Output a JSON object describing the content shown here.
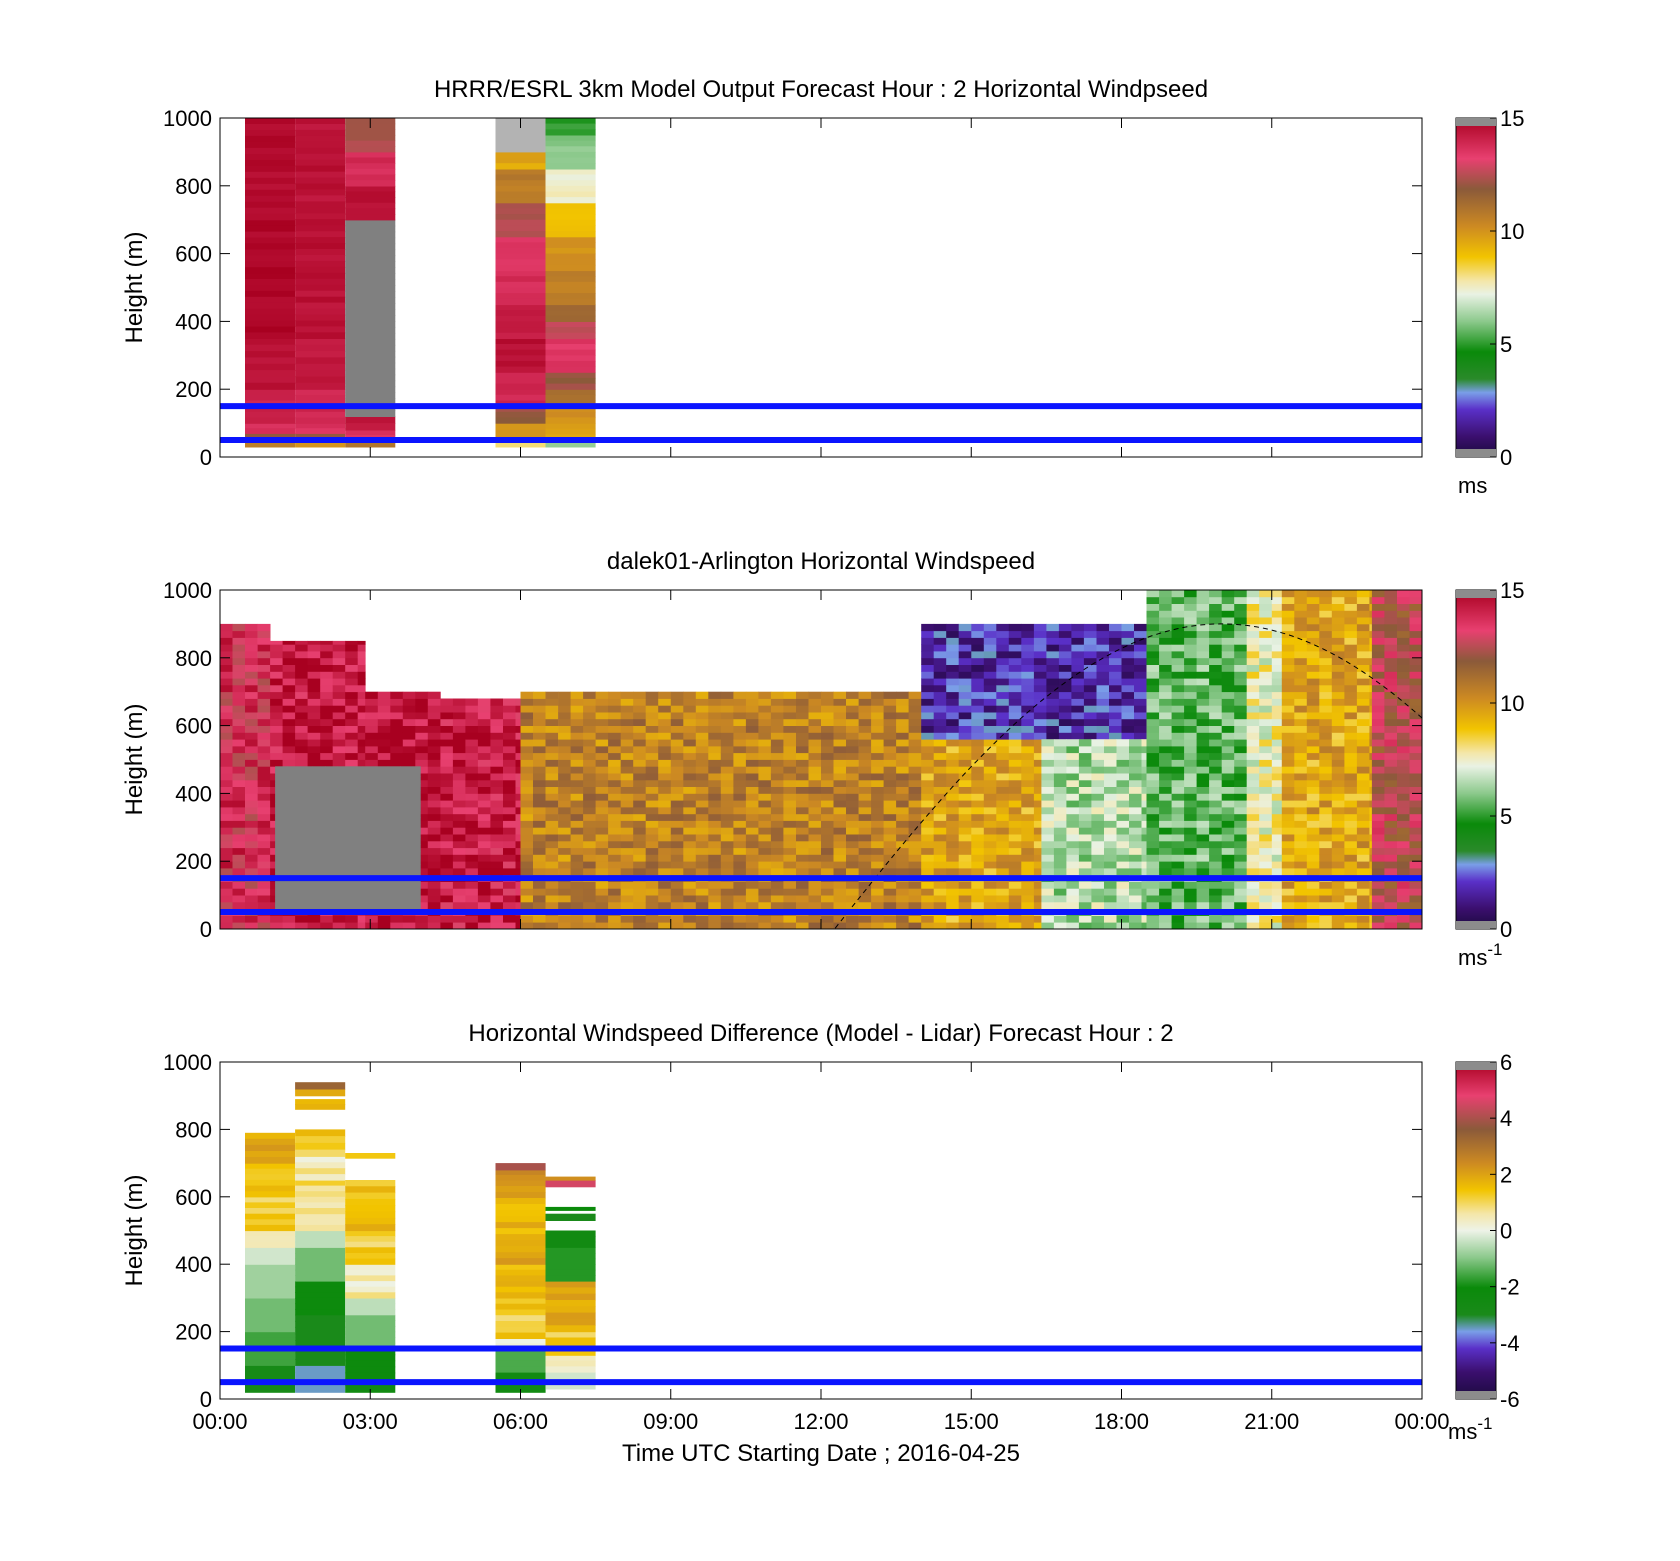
{
  "chart_data": [
    {
      "type": "heatmap",
      "title": "HRRR/ESRL 3km Model Output   Forecast Hour : 2 Horizontal Windpseed",
      "xlabel": "",
      "ylabel": "Height (m)",
      "xlim_hours": [
        0,
        24
      ],
      "ylim": [
        0,
        1000
      ],
      "yticks": [
        "0",
        "200",
        "400",
        "600",
        "800",
        "1000"
      ],
      "colorbar": {
        "min": 0,
        "max": 15,
        "ticks": [
          "0",
          "5",
          "10",
          "15"
        ],
        "unit": "ms",
        "unit_sup": ""
      },
      "reference_lines_m": [
        50,
        150
      ],
      "columns": [
        {
          "hour": 1,
          "cells": [
            [
              30,
              50,
              10.5
            ],
            [
              50,
              70,
              12
            ],
            [
              70,
              100,
              13.5
            ],
            [
              100,
              200,
              14
            ],
            [
              200,
              350,
              14.5
            ],
            [
              350,
              700,
              14.8
            ],
            [
              700,
              1000,
              14.7
            ]
          ]
        },
        {
          "hour": 2,
          "cells": [
            [
              30,
              50,
              10
            ],
            [
              50,
              70,
              12
            ],
            [
              70,
              100,
              13.5
            ],
            [
              100,
              200,
              14
            ],
            [
              200,
              350,
              14.3
            ],
            [
              350,
              1000,
              14.5
            ]
          ]
        },
        {
          "hour": 3,
          "cells": [
            [
              30,
              50,
              11
            ],
            [
              50,
              80,
              13.5
            ],
            [
              80,
              120,
              14.5
            ],
            [
              120,
              700,
              -1
            ],
            [
              700,
              800,
              14.5
            ],
            [
              800,
              900,
              13.8
            ],
            [
              900,
              1000,
              12.3
            ]
          ]
        },
        {
          "hour": 6,
          "cells": [
            [
              30,
              50,
              8
            ],
            [
              50,
              60,
              6
            ],
            [
              60,
              100,
              10
            ],
            [
              100,
              150,
              12
            ],
            [
              150,
              200,
              13.8
            ],
            [
              200,
              250,
              14
            ],
            [
              250,
              350,
              14.5
            ],
            [
              350,
              450,
              14.2
            ],
            [
              450,
              550,
              13.8
            ],
            [
              550,
              650,
              13.5
            ],
            [
              650,
              750,
              12.3
            ],
            [
              750,
              850,
              10.7
            ],
            [
              850,
              900,
              9.5
            ],
            [
              900,
              1000,
              -1
            ]
          ]
        },
        {
          "hour": 7,
          "cells": [
            [
              30,
              50,
              6
            ],
            [
              50,
              100,
              9.5
            ],
            [
              100,
              150,
              10
            ],
            [
              150,
              200,
              11
            ],
            [
              200,
              250,
              12
            ],
            [
              250,
              350,
              13.5
            ],
            [
              350,
              400,
              12.5
            ],
            [
              400,
              450,
              11.5
            ],
            [
              450,
              550,
              10.5
            ],
            [
              550,
              650,
              10
            ],
            [
              650,
              750,
              9
            ],
            [
              750,
              850,
              7.5
            ],
            [
              850,
              950,
              6
            ],
            [
              950,
              1000,
              5
            ]
          ]
        }
      ]
    },
    {
      "type": "heatmap",
      "title": "dalek01-Arlington  Horizontal Windspeed",
      "xlabel": "",
      "ylabel": "Height (m)",
      "xlim_hours": [
        0,
        24
      ],
      "ylim": [
        0,
        1000
      ],
      "yticks": [
        "0",
        "200",
        "400",
        "600",
        "800",
        "1000"
      ],
      "colorbar": {
        "min": 0,
        "max": 15,
        "ticks": [
          "0",
          "5",
          "10",
          "15"
        ],
        "unit": "ms",
        "unit_sup": "-1"
      },
      "reference_lines_m": [
        50,
        150
      ],
      "solar_elevation_curve": true,
      "field_regions": [
        {
          "h0": 0,
          "h1": 1,
          "z0": 0,
          "z1": 900,
          "value": 13.5
        },
        {
          "h0": 1,
          "h1": 2.9,
          "z0": 0,
          "z1": 850,
          "value": 14.3
        },
        {
          "h0": 2.9,
          "h1": 4.4,
          "z0": 0,
          "z1": 700,
          "value": 14.5
        },
        {
          "h0": 1.1,
          "h1": 4.0,
          "z0": 50,
          "z1": 480,
          "value": -1
        },
        {
          "h0": 4.4,
          "h1": 6.0,
          "z0": 0,
          "z1": 680,
          "value": 14.2
        },
        {
          "h0": 6.0,
          "h1": 14.0,
          "z0": 0,
          "z1": 700,
          "value": 10.5
        },
        {
          "h0": 14.0,
          "h1": 16.4,
          "z0": 0,
          "z1": 560,
          "value": 9.5
        },
        {
          "h0": 14.0,
          "h1": 18.5,
          "z0": 560,
          "z1": 900,
          "value": 1.8
        },
        {
          "h0": 16.4,
          "h1": 18.5,
          "z0": 0,
          "z1": 560,
          "value": 6.5
        },
        {
          "h0": 18.5,
          "h1": 20.5,
          "z0": 0,
          "z1": 1000,
          "value": 5.5
        },
        {
          "h0": 20.5,
          "h1": 21.2,
          "z0": 0,
          "z1": 1000,
          "value": 7.5
        },
        {
          "h0": 21.2,
          "h1": 23.0,
          "z0": 0,
          "z1": 1000,
          "value": 9.5
        },
        {
          "h0": 23.0,
          "h1": 24.0,
          "z0": 0,
          "z1": 1000,
          "value": 12.5
        }
      ]
    },
    {
      "type": "heatmap",
      "title": "Horizontal Windspeed Difference (Model - Lidar) Forecast Hour : 2",
      "xlabel": "Time UTC  Starting Date ; 2016-04-25",
      "ylabel": "Height (m)",
      "xlim_hours": [
        0,
        24
      ],
      "ylim": [
        0,
        1000
      ],
      "yticks": [
        "0",
        "200",
        "400",
        "600",
        "800",
        "1000"
      ],
      "xticks": [
        "00:00",
        "03:00",
        "06:00",
        "09:00",
        "12:00",
        "15:00",
        "18:00",
        "21:00",
        "00:00"
      ],
      "colorbar": {
        "min": -6,
        "max": 6,
        "ticks": [
          "-6",
          "-4",
          "-2",
          "0",
          "2",
          "4",
          "6"
        ],
        "unit": "ms",
        "unit_sup": "-1"
      },
      "reference_lines_m": [
        50,
        150
      ],
      "columns": [
        {
          "hour": 1,
          "cells": [
            [
              20,
              100,
              -2.8
            ],
            [
              100,
              200,
              -1.6
            ],
            [
              200,
              300,
              -1.2
            ],
            [
              300,
              400,
              -0.8
            ],
            [
              400,
              450,
              -0.3
            ],
            [
              450,
              500,
              0.5
            ],
            [
              500,
              600,
              1.2
            ],
            [
              600,
              700,
              1.5
            ],
            [
              700,
              790,
              2.0
            ]
          ]
        },
        {
          "hour": 2,
          "cells": [
            [
              20,
              100,
              -3.5
            ],
            [
              100,
              250,
              -3
            ],
            [
              250,
              350,
              -2.2
            ],
            [
              350,
              450,
              -1.2
            ],
            [
              450,
              500,
              -0.5
            ],
            [
              500,
              550,
              0.3
            ],
            [
              550,
              650,
              0.8
            ],
            [
              650,
              720,
              0.5
            ],
            [
              720,
              800,
              1.2
            ],
            [
              860,
              890,
              1.8
            ],
            [
              900,
              920,
              2.2
            ],
            [
              920,
              940,
              3.2
            ]
          ]
        },
        {
          "hour": 3,
          "cells": [
            [
              20,
              60,
              -2.5
            ],
            [
              60,
              150,
              -2.2
            ],
            [
              150,
              250,
              -1.2
            ],
            [
              250,
              300,
              -0.5
            ],
            [
              300,
              400,
              0.4
            ],
            [
              400,
              500,
              1.2
            ],
            [
              500,
              650,
              1.5
            ],
            [
              715,
              730,
              1.2
            ]
          ]
        },
        {
          "hour": 6,
          "cells": [
            [
              20,
              80,
              -2.5
            ],
            [
              80,
              150,
              -1.5
            ],
            [
              150,
              180,
              0
            ],
            [
              180,
              300,
              1.2
            ],
            [
              300,
              400,
              1.5
            ],
            [
              400,
              650,
              1.8
            ],
            [
              650,
              680,
              2.5
            ],
            [
              680,
              700,
              4.2
            ]
          ]
        },
        {
          "hour": 7,
          "cells": [
            [
              30,
              80,
              -0.3
            ],
            [
              80,
              130,
              0.3
            ],
            [
              130,
              200,
              1.2
            ],
            [
              200,
              350,
              2.0
            ],
            [
              350,
              450,
              -1.8
            ],
            [
              450,
              500,
              -2.5
            ],
            [
              530,
              550,
              -3
            ],
            [
              560,
              570,
              -2
            ],
            [
              630,
              650,
              4.5
            ],
            [
              650,
              660,
              2.0
            ]
          ]
        }
      ]
    }
  ]
}
